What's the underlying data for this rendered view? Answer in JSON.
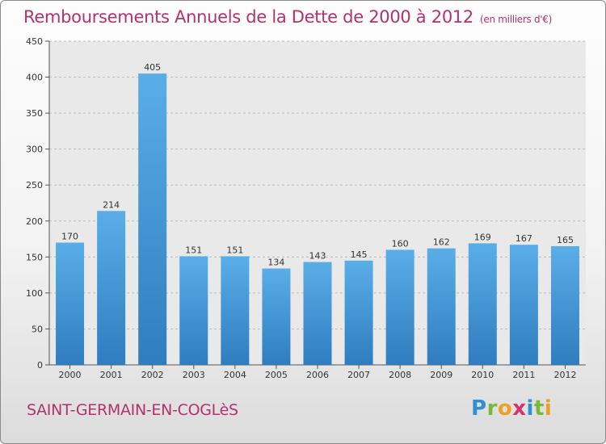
{
  "header": {
    "title": "Remboursements Annuels de la Dette de 2000 à 2012",
    "subtitle": "(en milliers d'€)"
  },
  "footer": {
    "city": "SAINT-GERMAIN-EN-COGLèS",
    "logo": "Proxiti"
  },
  "colors": {
    "bar_top": "#5aaee8",
    "bar_bottom": "#2f7dbf",
    "title": "#b0336b"
  },
  "chart_data": {
    "type": "bar",
    "title": "Remboursements Annuels de la Dette de 2000 à 2012",
    "subtitle": "(en milliers d'€)",
    "categories": [
      "2000",
      "2001",
      "2002",
      "2003",
      "2004",
      "2005",
      "2006",
      "2007",
      "2008",
      "2009",
      "2010",
      "2011",
      "2012"
    ],
    "values": [
      170,
      214,
      405,
      151,
      151,
      134,
      143,
      145,
      160,
      162,
      169,
      167,
      165
    ],
    "ylim": [
      0,
      450
    ],
    "yticks": [
      0,
      50,
      100,
      150,
      200,
      250,
      300,
      350,
      400,
      450
    ],
    "grid": true
  }
}
